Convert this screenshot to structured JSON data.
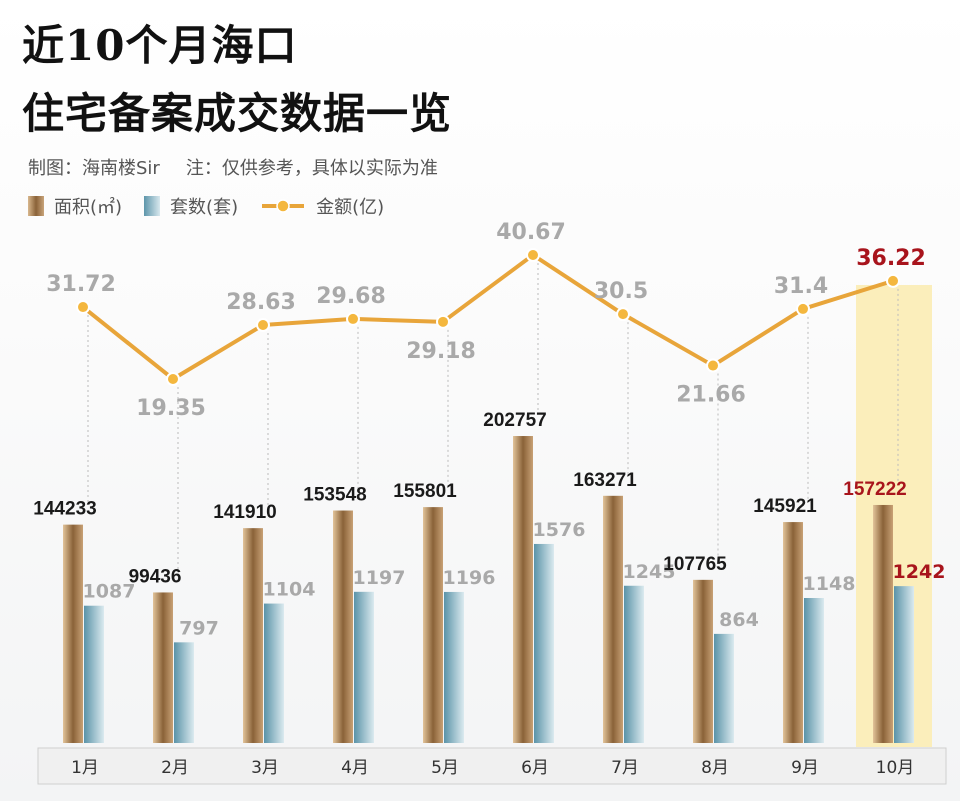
{
  "title_line1": "近10个月海口",
  "title_line2": "住宅备案成交数据一览",
  "credit": "制图：海南楼Sir",
  "note": "注：仅供参考，具体以实际为准",
  "colors": {
    "area": "#a57b4f",
    "count": "#6fa3b6",
    "amount": "#e8a53a",
    "label_gray": "#a9a9a9",
    "label_black": "#1a1a1a",
    "highlight_label": "#a8141c",
    "highlight_bg": "#fbeebb"
  },
  "chart_data": {
    "type": "bar+line",
    "categories": [
      "1月",
      "2月",
      "3月",
      "4月",
      "5月",
      "6月",
      "7月",
      "8月",
      "9月",
      "10月"
    ],
    "series": [
      {
        "name": "面积(㎡)",
        "type": "bar",
        "values": [
          144233,
          99436,
          141910,
          153548,
          155801,
          202757,
          163271,
          107765,
          145921,
          157222
        ]
      },
      {
        "name": "套数(套)",
        "type": "bar",
        "values": [
          1087,
          797,
          1104,
          1197,
          1196,
          1576,
          1245,
          864,
          1148,
          1242
        ]
      },
      {
        "name": "金额(亿)",
        "type": "line",
        "values": [
          31.72,
          19.35,
          28.63,
          29.68,
          29.18,
          40.67,
          30.5,
          21.66,
          31.4,
          36.22
        ]
      }
    ],
    "highlight_category": "10月",
    "legend": "top-left",
    "grid": false
  }
}
